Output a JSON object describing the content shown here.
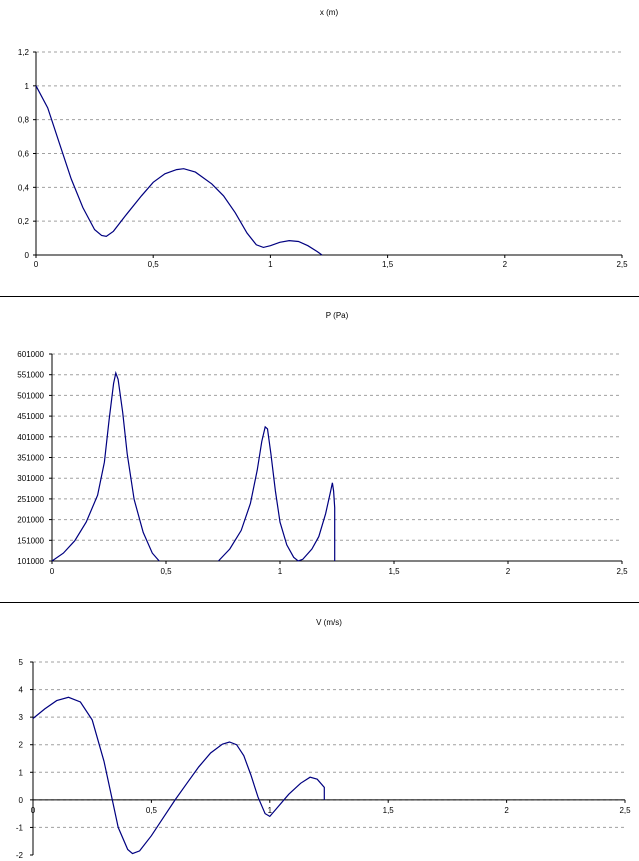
{
  "chart_data": [
    {
      "type": "line",
      "title": "x (m)",
      "xlabel": "",
      "ylabel": "",
      "xlim": [
        0,
        2.5
      ],
      "ylim": [
        0,
        1.2
      ],
      "x_ticks": [
        "0",
        "0,5",
        "1",
        "1,5",
        "2",
        "2,5"
      ],
      "y_ticks": [
        "0",
        "0,2",
        "0,4",
        "0,6",
        "0,8",
        "1",
        "1,2"
      ],
      "grid": true,
      "series": [
        {
          "color": "#000080",
          "points": [
            [
              0,
              1.0
            ],
            [
              0.05,
              0.87
            ],
            [
              0.1,
              0.66
            ],
            [
              0.15,
              0.45
            ],
            [
              0.2,
              0.28
            ],
            [
              0.25,
              0.15
            ],
            [
              0.28,
              0.115
            ],
            [
              0.3,
              0.11
            ],
            [
              0.33,
              0.14
            ],
            [
              0.38,
              0.23
            ],
            [
              0.45,
              0.35
            ],
            [
              0.5,
              0.43
            ],
            [
              0.55,
              0.48
            ],
            [
              0.6,
              0.505
            ],
            [
              0.63,
              0.51
            ],
            [
              0.68,
              0.49
            ],
            [
              0.75,
              0.42
            ],
            [
              0.8,
              0.35
            ],
            [
              0.85,
              0.25
            ],
            [
              0.9,
              0.13
            ],
            [
              0.94,
              0.06
            ],
            [
              0.97,
              0.045
            ],
            [
              1.0,
              0.055
            ],
            [
              1.04,
              0.075
            ],
            [
              1.08,
              0.085
            ],
            [
              1.12,
              0.08
            ],
            [
              1.16,
              0.055
            ],
            [
              1.2,
              0.02
            ],
            [
              1.22,
              0.0
            ]
          ]
        }
      ]
    },
    {
      "type": "line",
      "title": "P (Pa)",
      "xlabel": "",
      "ylabel": "",
      "xlim": [
        0,
        2.5
      ],
      "ylim": [
        101000,
        601000
      ],
      "x_ticks": [
        "0",
        "0,5",
        "1",
        "1,5",
        "2",
        "2,5"
      ],
      "y_ticks": [
        "101000",
        "151000",
        "201000",
        "251000",
        "301000",
        "351000",
        "401000",
        "451000",
        "501000",
        "551000",
        "601000"
      ],
      "grid": true,
      "series": [
        {
          "color": "#000080",
          "segments": [
            [
              [
                0,
                101000
              ],
              [
                0.05,
                120000
              ],
              [
                0.1,
                150000
              ],
              [
                0.15,
                195000
              ],
              [
                0.2,
                260000
              ],
              [
                0.23,
                340000
              ],
              [
                0.25,
                440000
              ],
              [
                0.27,
                530000
              ],
              [
                0.28,
                555000
              ],
              [
                0.29,
                540000
              ],
              [
                0.31,
                460000
              ],
              [
                0.33,
                360000
              ],
              [
                0.36,
                250000
              ],
              [
                0.4,
                170000
              ],
              [
                0.44,
                120000
              ],
              [
                0.47,
                101000
              ]
            ],
            [
              [
                0.73,
                101000
              ],
              [
                0.78,
                130000
              ],
              [
                0.83,
                175000
              ],
              [
                0.87,
                240000
              ],
              [
                0.9,
                320000
              ],
              [
                0.92,
                390000
              ],
              [
                0.935,
                425000
              ],
              [
                0.945,
                420000
              ],
              [
                0.96,
                360000
              ],
              [
                0.98,
                270000
              ],
              [
                1.0,
                195000
              ],
              [
                1.03,
                140000
              ],
              [
                1.06,
                110000
              ],
              [
                1.08,
                101000
              ],
              [
                1.1,
                105000
              ],
              [
                1.14,
                130000
              ],
              [
                1.17,
                160000
              ],
              [
                1.2,
                215000
              ],
              [
                1.22,
                265000
              ],
              [
                1.23,
                290000
              ],
              [
                1.235,
                270000
              ],
              [
                1.24,
                230000
              ],
              [
                1.24,
                101000
              ]
            ]
          ]
        }
      ]
    },
    {
      "type": "line",
      "title": "V (m/s)",
      "xlabel": "",
      "ylabel": "",
      "xlim": [
        0,
        2.5
      ],
      "ylim": [
        -2,
        5
      ],
      "x_ticks": [
        "0",
        "0,5",
        "1",
        "1,5",
        "2",
        "2,5"
      ],
      "y_ticks": [
        "-2",
        "-1",
        "0",
        "1",
        "2",
        "3",
        "4",
        "5"
      ],
      "grid": true,
      "series": [
        {
          "color": "#000080",
          "points": [
            [
              0,
              2.95
            ],
            [
              0.05,
              3.3
            ],
            [
              0.1,
              3.6
            ],
            [
              0.15,
              3.72
            ],
            [
              0.2,
              3.55
            ],
            [
              0.25,
              2.9
            ],
            [
              0.3,
              1.4
            ],
            [
              0.33,
              0.2
            ],
            [
              0.36,
              -1.0
            ],
            [
              0.4,
              -1.8
            ],
            [
              0.42,
              -1.95
            ],
            [
              0.45,
              -1.85
            ],
            [
              0.5,
              -1.3
            ],
            [
              0.55,
              -0.65
            ],
            [
              0.6,
              0.0
            ],
            [
              0.65,
              0.6
            ],
            [
              0.7,
              1.2
            ],
            [
              0.75,
              1.7
            ],
            [
              0.8,
              2.02
            ],
            [
              0.83,
              2.1
            ],
            [
              0.86,
              2.0
            ],
            [
              0.89,
              1.6
            ],
            [
              0.92,
              0.9
            ],
            [
              0.95,
              0.1
            ],
            [
              0.98,
              -0.5
            ],
            [
              1.0,
              -0.6
            ],
            [
              1.03,
              -0.3
            ],
            [
              1.08,
              0.2
            ],
            [
              1.13,
              0.6
            ],
            [
              1.17,
              0.82
            ],
            [
              1.2,
              0.75
            ],
            [
              1.23,
              0.45
            ],
            [
              1.23,
              0.0
            ]
          ]
        }
      ]
    }
  ]
}
